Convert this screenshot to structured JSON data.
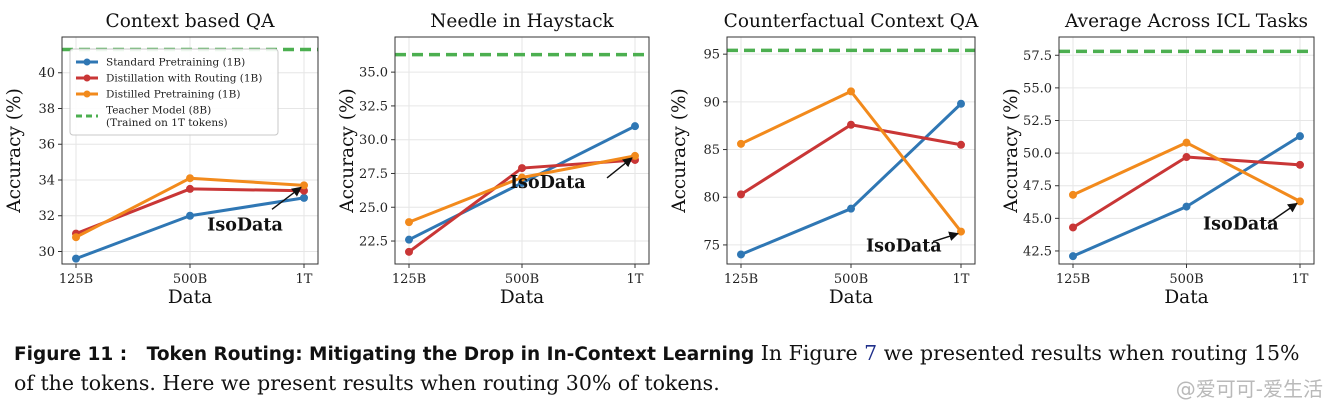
{
  "chart_data": [
    {
      "type": "line",
      "title": "Context based QA",
      "xlabel": "Data",
      "ylabel": "Accuracy (%)",
      "categories": [
        "125B",
        "500B",
        "1T"
      ],
      "ylim": [
        29.3,
        42.0
      ],
      "yticks": [
        30,
        32,
        34,
        36,
        38,
        40
      ],
      "ytick_labels": [
        "30",
        "32",
        "34",
        "36",
        "38",
        "40"
      ],
      "grid": true,
      "legend_position": "upper left",
      "series": [
        {
          "name": "Standard Pretraining (1B)",
          "color": "#2f77b4",
          "values": [
            29.6,
            32.0,
            33.0
          ]
        },
        {
          "name": "Distillation with Routing (1B)",
          "color": "#c93636",
          "values": [
            31.0,
            33.5,
            33.4
          ]
        },
        {
          "name": "Distilled Pretraining (1B)",
          "color": "#f28a1c",
          "values": [
            30.8,
            34.1,
            33.7
          ]
        }
      ],
      "reference_line": {
        "name": "Teacher Model (8B)",
        "name_line2": "(Trained on 1T tokens)",
        "color": "#4caf50",
        "value": 41.3
      },
      "annotation": {
        "text": "IsoData",
        "target_series": 2,
        "target_index": 2
      }
    },
    {
      "type": "line",
      "title": "Needle in Haystack",
      "xlabel": "Data",
      "ylabel": "Accuracy (%)",
      "categories": [
        "125B",
        "500B",
        "1T"
      ],
      "ylim": [
        20.8,
        37.6
      ],
      "yticks": [
        22.5,
        25.0,
        27.5,
        30.0,
        32.5,
        35.0
      ],
      "ytick_labels": [
        "22.5",
        "25.0",
        "27.5",
        "30.0",
        "32.5",
        "35.0"
      ],
      "grid": true,
      "series": [
        {
          "name": "Standard Pretraining (1B)",
          "color": "#2f77b4",
          "values": [
            22.6,
            26.8,
            31.0
          ]
        },
        {
          "name": "Distillation with Routing (1B)",
          "color": "#c93636",
          "values": [
            21.7,
            27.9,
            28.5
          ]
        },
        {
          "name": "Distilled Pretraining (1B)",
          "color": "#f28a1c",
          "values": [
            23.9,
            27.2,
            28.8
          ]
        }
      ],
      "reference_line": {
        "name": "Teacher Model (8B)",
        "color": "#4caf50",
        "value": 36.3
      },
      "annotation": {
        "text": "IsoData",
        "target_series": 2,
        "target_index": 2
      }
    },
    {
      "type": "line",
      "title": "Counterfactual Context QA",
      "xlabel": "Data",
      "ylabel": "Accuracy (%)",
      "categories": [
        "125B",
        "500B",
        "1T"
      ],
      "ylim": [
        73.0,
        96.8
      ],
      "yticks": [
        75,
        80,
        85,
        90,
        95
      ],
      "ytick_labels": [
        "75",
        "80",
        "85",
        "90",
        "95"
      ],
      "grid": true,
      "series": [
        {
          "name": "Standard Pretraining (1B)",
          "color": "#2f77b4",
          "values": [
            74.0,
            78.8,
            89.8
          ]
        },
        {
          "name": "Distillation with Routing (1B)",
          "color": "#c93636",
          "values": [
            80.3,
            87.6,
            85.5
          ]
        },
        {
          "name": "Distilled Pretraining (1B)",
          "color": "#f28a1c",
          "values": [
            85.6,
            91.1,
            76.4
          ]
        }
      ],
      "reference_line": {
        "name": "Teacher Model (8B)",
        "color": "#4caf50",
        "value": 95.4
      },
      "annotation": {
        "text": "IsoData",
        "target_series": 2,
        "target_index": 2
      }
    },
    {
      "type": "line",
      "title": "Average Across ICL Tasks",
      "xlabel": "Data",
      "ylabel": "Accuracy (%)",
      "categories": [
        "125B",
        "500B",
        "1T"
      ],
      "ylim": [
        41.5,
        58.9
      ],
      "yticks": [
        42.5,
        45.0,
        47.5,
        50.0,
        52.5,
        55.0,
        57.5
      ],
      "ytick_labels": [
        "42.5",
        "45.0",
        "47.5",
        "50.0",
        "52.5",
        "55.0",
        "57.5"
      ],
      "grid": true,
      "series": [
        {
          "name": "Standard Pretraining (1B)",
          "color": "#2f77b4",
          "values": [
            42.1,
            45.9,
            51.3
          ]
        },
        {
          "name": "Distillation with Routing (1B)",
          "color": "#c93636",
          "values": [
            44.3,
            49.7,
            49.1
          ]
        },
        {
          "name": "Distilled Pretraining (1B)",
          "color": "#f28a1c",
          "values": [
            46.8,
            50.8,
            46.3
          ]
        }
      ],
      "reference_line": {
        "name": "Teacher Model (8B)",
        "color": "#4caf50",
        "value": 57.8
      },
      "annotation": {
        "text": "IsoData",
        "target_series": 2,
        "target_index": 2
      }
    }
  ],
  "caption": {
    "label": "Figure 11 :",
    "title": "Token Routing: Mitigating the Drop in In-Context Learning",
    "text_before_ref": "In Figure",
    "ref": "7",
    "text_after_ref": "we presented results when routing 15% of the tokens. Here we present results when routing 30% of tokens."
  },
  "watermark": "@爱可可-爱生活"
}
